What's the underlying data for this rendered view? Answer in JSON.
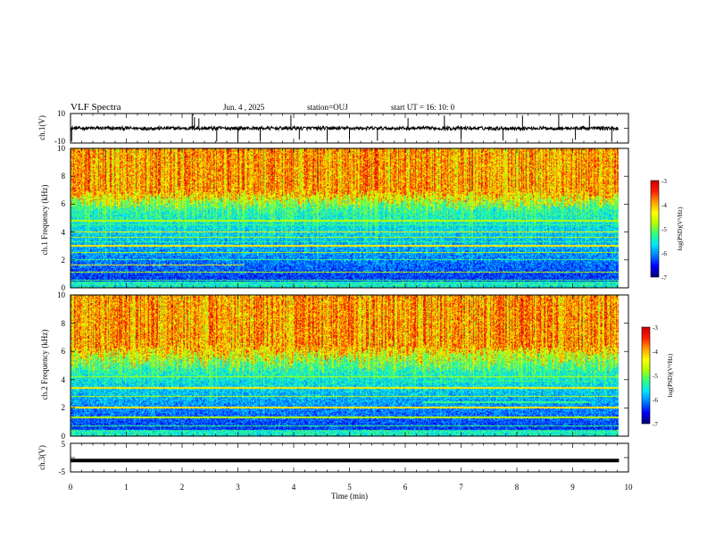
{
  "header": {
    "title": "VLF Spectra",
    "date": "Jun. 4 , 2025",
    "station": "station=OUJ",
    "start": "start UT =  16: 10: 0"
  },
  "chart_data": [
    {
      "type": "line",
      "ylabel": "ch.1(V)",
      "ylim": [
        -10,
        10
      ],
      "y_ticks": [
        "10",
        "-10"
      ],
      "xlim": [
        0,
        10
      ],
      "baseline": 0,
      "spike_times_min": [
        0.02,
        2.18,
        2.22,
        2.3,
        2.62,
        3.0,
        3.4,
        3.95,
        4.1,
        4.6,
        5.0,
        5.5,
        6.05,
        6.7,
        7.0,
        7.75,
        8.1,
        8.75,
        9.05,
        9.3,
        9.7
      ]
    },
    {
      "type": "heatmap",
      "ylabel": "ch.1 Frequency (kHz)",
      "ylim": [
        0,
        10
      ],
      "y_ticks": [
        "0",
        "2",
        "4",
        "6",
        "8",
        "10"
      ],
      "xlim": [
        0,
        10
      ],
      "colorbar_label": "log(PSD)(V²/Hz)",
      "colorbar_ticks": [
        "-3",
        "-4",
        "-5",
        "-6",
        "-7"
      ],
      "colorbar_range": [
        -7,
        -3
      ],
      "noise_top_kHz": [
        5.5,
        7.0
      ],
      "tonal_lines_kHz": [
        0.5,
        1.1,
        1.6,
        2.0,
        2.5,
        3.0,
        3.3,
        3.6,
        4.0,
        4.5,
        4.8
      ],
      "data_end_min": 9.83
    },
    {
      "type": "heatmap",
      "ylabel": "ch.2 Frequency (kHz)",
      "ylim": [
        0,
        10
      ],
      "y_ticks": [
        "0",
        "2",
        "4",
        "6",
        "8",
        "10"
      ],
      "xlim": [
        0,
        10
      ],
      "colorbar_label": "log(PSD)(V²/Hz)",
      "colorbar_ticks": [
        "-3",
        "-4",
        "-5",
        "-6",
        "-7"
      ],
      "colorbar_range": [
        -7,
        -3
      ],
      "noise_top_kHz": [
        4.5,
        6.5
      ],
      "tonal_lines_kHz": [
        0.7,
        1.3,
        2.0,
        2.4,
        2.8,
        3.4,
        3.9,
        4.2
      ],
      "data_end_min": 9.83
    },
    {
      "type": "line",
      "ylabel": "ch.3(V)",
      "ylim": [
        -5,
        5
      ],
      "y_ticks": [
        "5",
        "-5"
      ],
      "xlim": [
        0,
        10
      ],
      "value": -1,
      "xlabel": "Time (min)",
      "x_ticks": [
        "0",
        "1",
        "2",
        "3",
        "4",
        "5",
        "6",
        "7",
        "8",
        "9",
        "10"
      ]
    }
  ],
  "colors": {
    "frame": "#000000",
    "scale": [
      "#00007a",
      "#0000ff",
      "#0080ff",
      "#00e5ff",
      "#30ff80",
      "#b0ff00",
      "#ffff00",
      "#ffa000",
      "#ff2000",
      "#d00000"
    ]
  }
}
